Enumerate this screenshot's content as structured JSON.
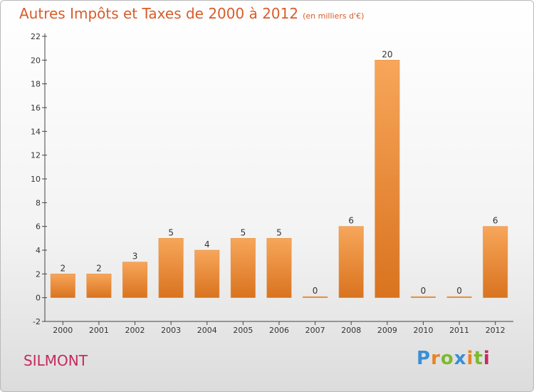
{
  "chart_data": {
    "type": "bar",
    "title": "Autres Impôts et Taxes de 2000 à 2012",
    "subtitle": "(en milliers d'€)",
    "categories": [
      "2000",
      "2001",
      "2002",
      "2003",
      "2004",
      "2005",
      "2006",
      "2007",
      "2008",
      "2009",
      "2010",
      "2011",
      "2012"
    ],
    "values": [
      2,
      2,
      3,
      5,
      4,
      5,
      5,
      0,
      6,
      20,
      0,
      0,
      6
    ],
    "ylim": [
      -2,
      22
    ],
    "yticks": [
      -2,
      0,
      2,
      4,
      6,
      8,
      10,
      12,
      14,
      16,
      18,
      20,
      22
    ],
    "xlabel": "",
    "ylabel": "",
    "grid": false,
    "bar_color_light": "#f7a65a",
    "bar_color_dark": "#d9731f"
  },
  "footer": {
    "town": "SILMONT",
    "logo_letters": [
      "P",
      "r",
      "o",
      "x",
      "i",
      "t",
      "i"
    ],
    "logo_colors": [
      "#3a8fd6",
      "#e6842a",
      "#7cba2f",
      "#3a8fd6",
      "#e6842a",
      "#7cba2f",
      "#c42a5f"
    ]
  }
}
